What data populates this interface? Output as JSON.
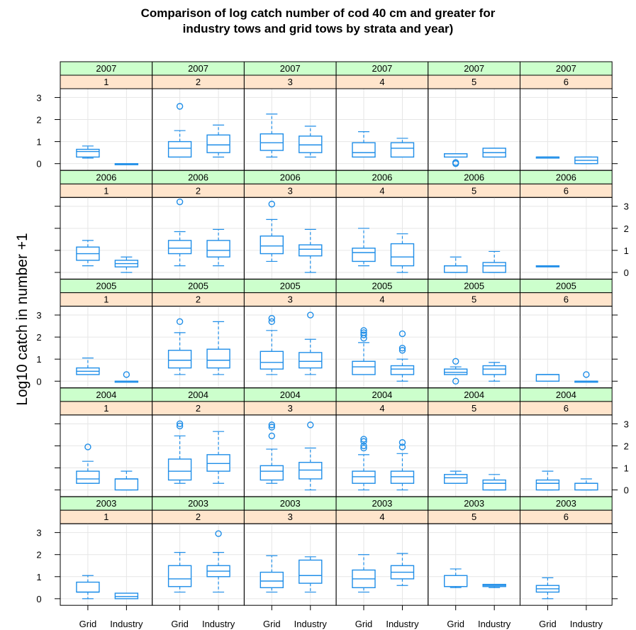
{
  "chart_data": {
    "type": "box",
    "title": "Comparison of log catch number of cod 40 cm and greater for\nindustry tows and grid tows by strata and year)",
    "ylabel": "Log10 catch in number +1",
    "xlabel": "",
    "ylim": [
      -0.3,
      3.4
    ],
    "y_ticks": [
      0,
      1,
      2,
      3
    ],
    "groups": [
      "Grid",
      "Industry"
    ],
    "strata": [
      "1",
      "2",
      "3",
      "4",
      "5",
      "6"
    ],
    "years": [
      "2007",
      "2006",
      "2005",
      "2004",
      "2003"
    ],
    "grid": true,
    "colors": {
      "box": "#1f8ee8",
      "year_strip": "#ccffcc",
      "stratum_strip": "#ffe5cc",
      "grid": "#e6e6e6",
      "panel_border": "#000000"
    },
    "panels": [
      {
        "year": "2007",
        "stratum": "1",
        "Grid": {
          "whislo": 0.25,
          "q1": 0.3,
          "med": 0.55,
          "q3": 0.65,
          "whishi": 0.8,
          "fliers": []
        },
        "Industry": {
          "whislo": 0,
          "q1": 0,
          "med": 0,
          "q3": 0,
          "whishi": 0,
          "fliers": []
        }
      },
      {
        "year": "2007",
        "stratum": "2",
        "Grid": {
          "whislo": 0.3,
          "q1": 0.3,
          "med": 0.7,
          "q3": 1.0,
          "whishi": 1.5,
          "fliers": [
            2.6
          ]
        },
        "Industry": {
          "whislo": 0.3,
          "q1": 0.5,
          "med": 0.85,
          "q3": 1.3,
          "whishi": 1.75,
          "fliers": []
        }
      },
      {
        "year": "2007",
        "stratum": "3",
        "Grid": {
          "whislo": 0.3,
          "q1": 0.6,
          "med": 0.95,
          "q3": 1.35,
          "whishi": 2.25,
          "fliers": []
        },
        "Industry": {
          "whislo": 0.3,
          "q1": 0.5,
          "med": 0.85,
          "q3": 1.25,
          "whishi": 1.7,
          "fliers": []
        }
      },
      {
        "year": "2007",
        "stratum": "4",
        "Grid": {
          "whislo": 0.3,
          "q1": 0.3,
          "med": 0.5,
          "q3": 0.95,
          "whishi": 1.45,
          "fliers": []
        },
        "Industry": {
          "whislo": 0.3,
          "q1": 0.3,
          "med": 0.7,
          "q3": 0.95,
          "whishi": 1.15,
          "fliers": []
        }
      },
      {
        "year": "2007",
        "stratum": "5",
        "Grid": {
          "whislo": 0.3,
          "q1": 0.3,
          "med": 0.45,
          "q3": 0.45,
          "whishi": 0.45,
          "fliers": [
            0.0,
            0.05
          ]
        },
        "Industry": {
          "whislo": 0.3,
          "q1": 0.3,
          "med": 0.5,
          "q3": 0.7,
          "whishi": 0.7,
          "fliers": []
        }
      },
      {
        "year": "2007",
        "stratum": "6",
        "Grid": {
          "whislo": 0.3,
          "q1": 0.3,
          "med": 0.3,
          "q3": 0.3,
          "whishi": 0.3,
          "fliers": []
        },
        "Industry": {
          "whislo": 0.0,
          "q1": 0.0,
          "med": 0.15,
          "q3": 0.3,
          "whishi": 0.3,
          "fliers": []
        }
      },
      {
        "year": "2006",
        "stratum": "1",
        "Grid": {
          "whislo": 0.3,
          "q1": 0.55,
          "med": 0.85,
          "q3": 1.15,
          "whishi": 1.45,
          "fliers": []
        },
        "Industry": {
          "whislo": 0.0,
          "q1": 0.25,
          "med": 0.4,
          "q3": 0.55,
          "whishi": 0.7,
          "fliers": []
        }
      },
      {
        "year": "2006",
        "stratum": "2",
        "Grid": {
          "whislo": 0.3,
          "q1": 0.85,
          "med": 1.1,
          "q3": 1.45,
          "whishi": 1.85,
          "fliers": [
            3.2
          ]
        },
        "Industry": {
          "whislo": 0.3,
          "q1": 0.7,
          "med": 1.0,
          "q3": 1.45,
          "whishi": 1.95,
          "fliers": []
        }
      },
      {
        "year": "2006",
        "stratum": "3",
        "Grid": {
          "whislo": 0.5,
          "q1": 0.85,
          "med": 1.2,
          "q3": 1.65,
          "whishi": 2.4,
          "fliers": [
            3.1
          ]
        },
        "Industry": {
          "whislo": 0.0,
          "q1": 0.75,
          "med": 1.05,
          "q3": 1.25,
          "whishi": 1.95,
          "fliers": []
        }
      },
      {
        "year": "2006",
        "stratum": "4",
        "Grid": {
          "whislo": 0.3,
          "q1": 0.5,
          "med": 0.9,
          "q3": 1.1,
          "whishi": 2.0,
          "fliers": []
        },
        "Industry": {
          "whislo": 0.0,
          "q1": 0.3,
          "med": 0.7,
          "q3": 1.3,
          "whishi": 1.75,
          "fliers": []
        }
      },
      {
        "year": "2006",
        "stratum": "5",
        "Grid": {
          "whislo": 0.0,
          "q1": 0.0,
          "med": 0.3,
          "q3": 0.3,
          "whishi": 0.7,
          "fliers": []
        },
        "Industry": {
          "whislo": 0.0,
          "q1": 0.0,
          "med": 0.3,
          "q3": 0.45,
          "whishi": 0.95,
          "fliers": []
        }
      },
      {
        "year": "2006",
        "stratum": "6",
        "Grid": {
          "whislo": 0.3,
          "q1": 0.3,
          "med": 0.3,
          "q3": 0.3,
          "whishi": 0.3,
          "fliers": []
        },
        "Industry": null
      },
      {
        "year": "2005",
        "stratum": "1",
        "Grid": {
          "whislo": 0.3,
          "q1": 0.3,
          "med": 0.45,
          "q3": 0.6,
          "whishi": 1.05,
          "fliers": []
        },
        "Industry": {
          "whislo": 0,
          "q1": 0,
          "med": 0,
          "q3": 0,
          "whishi": 0,
          "fliers": [
            0.3
          ]
        }
      },
      {
        "year": "2005",
        "stratum": "2",
        "Grid": {
          "whislo": 0.3,
          "q1": 0.6,
          "med": 0.95,
          "q3": 1.4,
          "whishi": 2.2,
          "fliers": [
            2.7
          ]
        },
        "Industry": {
          "whislo": 0.3,
          "q1": 0.6,
          "med": 0.95,
          "q3": 1.45,
          "whishi": 2.7,
          "fliers": []
        }
      },
      {
        "year": "2005",
        "stratum": "3",
        "Grid": {
          "whislo": 0.3,
          "q1": 0.55,
          "med": 0.85,
          "q3": 1.35,
          "whishi": 2.3,
          "fliers": [
            2.7,
            2.85
          ]
        },
        "Industry": {
          "whislo": 0.3,
          "q1": 0.6,
          "med": 0.9,
          "q3": 1.3,
          "whishi": 1.9,
          "fliers": [
            3.0
          ]
        }
      },
      {
        "year": "2005",
        "stratum": "4",
        "Grid": {
          "whislo": 0.3,
          "q1": 0.3,
          "med": 0.65,
          "q3": 0.9,
          "whishi": 1.75,
          "fliers": [
            1.95,
            2.1,
            2.2,
            2.3
          ]
        },
        "Industry": {
          "whislo": 0.0,
          "q1": 0.3,
          "med": 0.55,
          "q3": 0.7,
          "whishi": 1.0,
          "fliers": [
            1.4,
            1.5,
            2.15
          ]
        }
      },
      {
        "year": "2005",
        "stratum": "5",
        "Grid": {
          "whislo": 0.3,
          "q1": 0.3,
          "med": 0.4,
          "q3": 0.55,
          "whishi": 0.65,
          "fliers": [
            0.0,
            0.9
          ]
        },
        "Industry": {
          "whislo": 0.0,
          "q1": 0.3,
          "med": 0.55,
          "q3": 0.7,
          "whishi": 0.85,
          "fliers": []
        }
      },
      {
        "year": "2005",
        "stratum": "6",
        "Grid": {
          "whislo": 0.0,
          "q1": 0.0,
          "med": 0.3,
          "q3": 0.3,
          "whishi": 0.3,
          "fliers": []
        },
        "Industry": {
          "whislo": 0,
          "q1": 0,
          "med": 0,
          "q3": 0,
          "whishi": 0,
          "fliers": [
            0.3
          ]
        }
      },
      {
        "year": "2004",
        "stratum": "1",
        "Grid": {
          "whislo": 0.3,
          "q1": 0.3,
          "med": 0.5,
          "q3": 0.85,
          "whishi": 1.3,
          "fliers": [
            1.95
          ]
        },
        "Industry": {
          "whislo": 0.0,
          "q1": 0.0,
          "med": 0.5,
          "q3": 0.5,
          "whishi": 0.85,
          "fliers": []
        }
      },
      {
        "year": "2004",
        "stratum": "2",
        "Grid": {
          "whislo": 0.3,
          "q1": 0.45,
          "med": 0.85,
          "q3": 1.4,
          "whishi": 2.45,
          "fliers": [
            2.9,
            3.0
          ]
        },
        "Industry": {
          "whislo": 0.3,
          "q1": 0.85,
          "med": 1.2,
          "q3": 1.6,
          "whishi": 2.65,
          "fliers": []
        }
      },
      {
        "year": "2004",
        "stratum": "3",
        "Grid": {
          "whislo": 0.3,
          "q1": 0.45,
          "med": 0.85,
          "q3": 1.1,
          "whishi": 1.85,
          "fliers": [
            2.45,
            2.85,
            2.95
          ]
        },
        "Industry": {
          "whislo": 0.0,
          "q1": 0.5,
          "med": 0.9,
          "q3": 1.25,
          "whishi": 1.9,
          "fliers": [
            2.95
          ]
        }
      },
      {
        "year": "2004",
        "stratum": "4",
        "Grid": {
          "whislo": 0.0,
          "q1": 0.3,
          "med": 0.6,
          "q3": 0.85,
          "whishi": 1.6,
          "fliers": [
            1.9,
            2.0,
            2.2,
            2.3
          ]
        },
        "Industry": {
          "whislo": 0.0,
          "q1": 0.3,
          "med": 0.6,
          "q3": 0.85,
          "whishi": 1.65,
          "fliers": [
            1.95,
            2.15
          ]
        }
      },
      {
        "year": "2004",
        "stratum": "5",
        "Grid": {
          "whislo": 0.3,
          "q1": 0.3,
          "med": 0.55,
          "q3": 0.7,
          "whishi": 0.85,
          "fliers": []
        },
        "Industry": {
          "whislo": 0.0,
          "q1": 0.0,
          "med": 0.3,
          "q3": 0.45,
          "whishi": 0.7,
          "fliers": []
        }
      },
      {
        "year": "2004",
        "stratum": "6",
        "Grid": {
          "whislo": 0.0,
          "q1": 0.0,
          "med": 0.3,
          "q3": 0.45,
          "whishi": 0.85,
          "fliers": []
        },
        "Industry": {
          "whislo": 0.0,
          "q1": 0.0,
          "med": 0.3,
          "q3": 0.3,
          "whishi": 0.5,
          "fliers": []
        }
      },
      {
        "year": "2003",
        "stratum": "1",
        "Grid": {
          "whislo": 0.0,
          "q1": 0.3,
          "med": 0.3,
          "q3": 0.75,
          "whishi": 1.05,
          "fliers": []
        },
        "Industry": {
          "whislo": 0.0,
          "q1": 0.0,
          "med": 0.1,
          "q3": 0.25,
          "whishi": 0.25,
          "fliers": []
        }
      },
      {
        "year": "2003",
        "stratum": "2",
        "Grid": {
          "whislo": 0.3,
          "q1": 0.55,
          "med": 0.9,
          "q3": 1.5,
          "whishi": 2.1,
          "fliers": []
        },
        "Industry": {
          "whislo": 0.3,
          "q1": 1.0,
          "med": 1.25,
          "q3": 1.5,
          "whishi": 2.1,
          "fliers": [
            2.95
          ]
        }
      },
      {
        "year": "2003",
        "stratum": "3",
        "Grid": {
          "whislo": 0.3,
          "q1": 0.5,
          "med": 0.8,
          "q3": 1.2,
          "whishi": 1.95,
          "fliers": []
        },
        "Industry": {
          "whislo": 0.3,
          "q1": 0.7,
          "med": 1.05,
          "q3": 1.75,
          "whishi": 1.9,
          "fliers": []
        }
      },
      {
        "year": "2003",
        "stratum": "4",
        "Grid": {
          "whislo": 0.3,
          "q1": 0.5,
          "med": 0.9,
          "q3": 1.3,
          "whishi": 2.0,
          "fliers": []
        },
        "Industry": {
          "whislo": 0.6,
          "q1": 0.9,
          "med": 1.2,
          "q3": 1.5,
          "whishi": 2.05,
          "fliers": []
        }
      },
      {
        "year": "2003",
        "stratum": "5",
        "Grid": {
          "whislo": 0.5,
          "q1": 0.55,
          "med": 0.55,
          "q3": 1.05,
          "whishi": 1.35,
          "fliers": []
        },
        "Industry": {
          "whislo": 0.5,
          "q1": 0.55,
          "med": 0.6,
          "q3": 0.65,
          "whishi": 0.65,
          "fliers": []
        }
      },
      {
        "year": "2003",
        "stratum": "6",
        "Grid": {
          "whislo": 0.0,
          "q1": 0.3,
          "med": 0.45,
          "q3": 0.6,
          "whishi": 0.95,
          "fliers": []
        },
        "Industry": null
      }
    ]
  }
}
